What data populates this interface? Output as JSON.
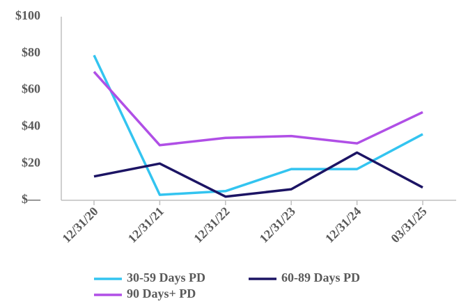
{
  "chart_data": {
    "type": "line",
    "categories": [
      "12/31/20",
      "12/31/21",
      "12/31/22",
      "12/31/23",
      "12/31/24",
      "03/31/25"
    ],
    "series": [
      {
        "name": "30-59 Days PD",
        "color": "#33c4f0",
        "values": [
          79,
          3,
          5,
          17,
          17,
          36
        ]
      },
      {
        "name": "60-89 Days PD",
        "color": "#1c1464",
        "values": [
          13,
          20,
          2,
          6,
          26,
          7
        ]
      },
      {
        "name": "90 Days+ PD",
        "color": "#b04fe6",
        "values": [
          70,
          30,
          34,
          35,
          31,
          48
        ]
      }
    ],
    "ylim": [
      0,
      100
    ],
    "yticks": [
      {
        "value": 0,
        "label": "$—"
      },
      {
        "value": 20,
        "label": "$20"
      },
      {
        "value": 40,
        "label": "$40"
      },
      {
        "value": 60,
        "label": "$60"
      },
      {
        "value": 80,
        "label": "$80"
      },
      {
        "value": 100,
        "label": "$100"
      }
    ],
    "grid": false
  }
}
